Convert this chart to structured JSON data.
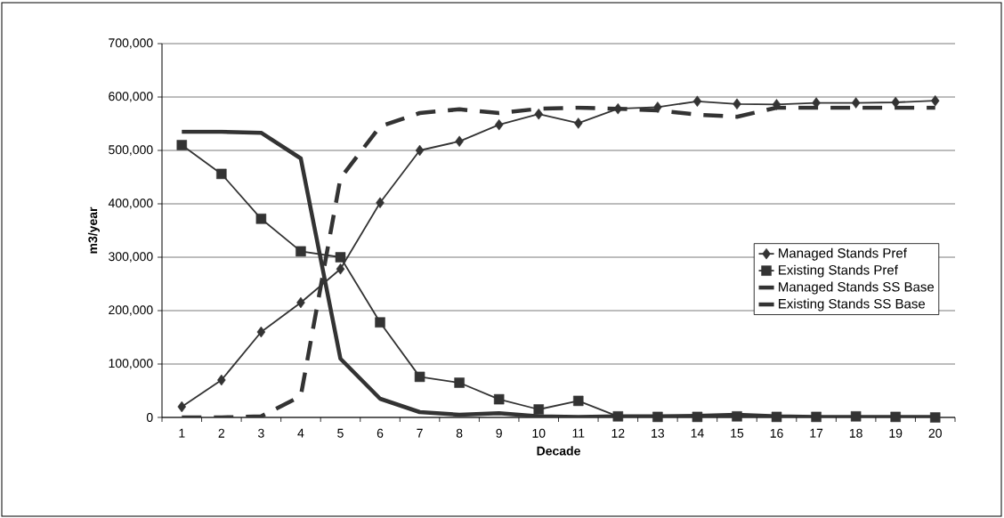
{
  "chart_data": {
    "type": "line",
    "xlabel": "Decade",
    "ylabel": "m3/year",
    "categories": [
      "1",
      "2",
      "3",
      "4",
      "5",
      "6",
      "7",
      "8",
      "9",
      "10",
      "11",
      "12",
      "13",
      "14",
      "15",
      "16",
      "17",
      "18",
      "19",
      "20"
    ],
    "series": [
      {
        "name": "Managed Stands Pref",
        "color": "#333333",
        "marker": "diamond",
        "line_style": "solid",
        "values": [
          20000,
          70000,
          160000,
          215000,
          278000,
          402000,
          500000,
          517000,
          548000,
          568000,
          551000,
          578000,
          581000,
          592000,
          587000,
          586000,
          589000,
          589000,
          590000,
          593000
        ]
      },
      {
        "name": "Existing Stands Pref",
        "color": "#333333",
        "marker": "square",
        "line_style": "solid",
        "values": [
          510000,
          456000,
          372000,
          311000,
          300000,
          178000,
          76000,
          65000,
          34000,
          15000,
          31000,
          2000,
          1000,
          1000,
          2000,
          1000,
          1000,
          2000,
          1000,
          0
        ]
      },
      {
        "name": "Managed Stands SS Base",
        "color": "#333333",
        "marker": "none",
        "line_style": "dashed",
        "values": [
          0,
          0,
          2000,
          40000,
          448000,
          545000,
          570000,
          577000,
          570000,
          578000,
          580000,
          578000,
          575000,
          567000,
          563000,
          580000,
          580000,
          580000,
          580000,
          580000
        ]
      },
      {
        "name": "Existing Stands SS Base",
        "color": "#333333",
        "marker": "none",
        "line_style": "solid",
        "values": [
          535000,
          535000,
          533000,
          485000,
          110000,
          35000,
          10000,
          5000,
          8000,
          2000,
          1000,
          2000,
          2000,
          3000,
          5000,
          2000,
          1000,
          1000,
          1000,
          1000
        ]
      }
    ],
    "ylim": [
      0,
      700000
    ],
    "yticks": [
      0,
      {
        "value": 100000,
        "label": "100,000"
      },
      {
        "value": 200000,
        "label": "200,000"
      },
      {
        "value": 300000,
        "label": "300,000"
      },
      {
        "value": 400000,
        "label": "400,000"
      },
      {
        "value": 500000,
        "label": "500,000"
      },
      {
        "value": 600000,
        "label": "600,000"
      },
      {
        "value": 700000,
        "label": "700,000"
      }
    ],
    "grid": "y",
    "legend": "right"
  }
}
